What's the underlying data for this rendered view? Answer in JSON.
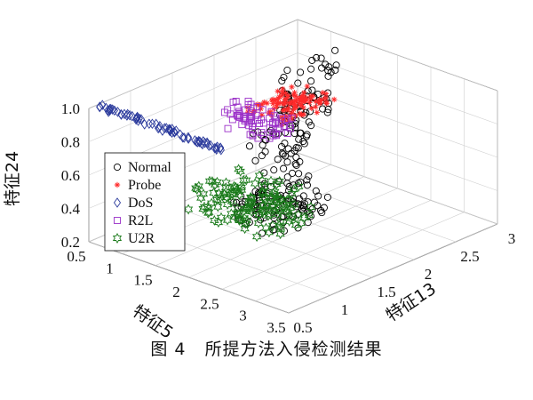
{
  "caption": "图 4   所提方法入侵检测结果",
  "chart_data": {
    "type": "scatter",
    "projection": "3d",
    "grid": true,
    "xlabel": "特征5",
    "ylabel": "特征13",
    "zlabel": "特征24",
    "xlim": [
      0.5,
      3.5
    ],
    "ylim": [
      0.5,
      3
    ],
    "zlim": [
      0.2,
      1.0
    ],
    "xticks": [
      "0.5",
      "1",
      "1.5",
      "2",
      "2.5",
      "3",
      "3.5"
    ],
    "yticks": [
      "0.5",
      "1",
      "1.5",
      "2",
      "2.5",
      "3"
    ],
    "zticks": [
      "0.2",
      "0.4",
      "0.6",
      "0.8",
      "1.0"
    ],
    "legend_position": "left",
    "legend": [
      "Normal",
      "Probe",
      "DoS",
      "R2L",
      "U2R"
    ],
    "series": [
      {
        "name": "Normal",
        "marker": "circle",
        "color": "#000000",
        "clusters": [
          {
            "x": [
              1.2,
              2.0
            ],
            "y": [
              1.5,
              2.3
            ],
            "z": [
              0.2,
              0.35
            ],
            "n": 90
          },
          {
            "x": [
              1.5,
              1.7
            ],
            "y": [
              1.6,
              2.3
            ],
            "z": [
              0.3,
              0.75
            ],
            "n": 45
          },
          {
            "x": [
              1.4,
              1.6
            ],
            "y": [
              1.8,
              2.4
            ],
            "z": [
              0.55,
              0.85
            ],
            "n": 35
          },
          {
            "x": [
              1.1,
              1.3
            ],
            "y": [
              2.2,
              2.9
            ],
            "z": [
              0.55,
              0.95
            ],
            "n": 50
          }
        ]
      },
      {
        "name": "Probe",
        "marker": "asterisk",
        "color": "#ff2a2a",
        "clusters": [
          {
            "x": [
              1.5,
              2.1
            ],
            "y": [
              1.6,
              2.2
            ],
            "z": [
              0.88,
              0.95
            ],
            "n": 110
          }
        ]
      },
      {
        "name": "DoS",
        "marker": "diamond",
        "color": "#2b3a9c",
        "clusters": [
          {
            "x": [
              0.5,
              2.4
            ],
            "y": [
              0.6,
              0.65
            ],
            "z": [
              0.98,
              1.0
            ],
            "n": 75
          }
        ]
      },
      {
        "name": "R2L",
        "marker": "square",
        "color": "#9b30c8",
        "clusters": [
          {
            "x": [
              1.4,
              2.3
            ],
            "y": [
              1.3,
              1.6
            ],
            "z": [
              0.85,
              0.98
            ],
            "n": 70
          }
        ]
      },
      {
        "name": "U2R",
        "marker": "hexagram",
        "color": "#1a7a1a",
        "clusters": [
          {
            "x": [
              1.6,
              2.8
            ],
            "y": [
              0.8,
              1.4
            ],
            "z": [
              0.45,
              0.65
            ],
            "n": 140
          }
        ]
      }
    ]
  }
}
